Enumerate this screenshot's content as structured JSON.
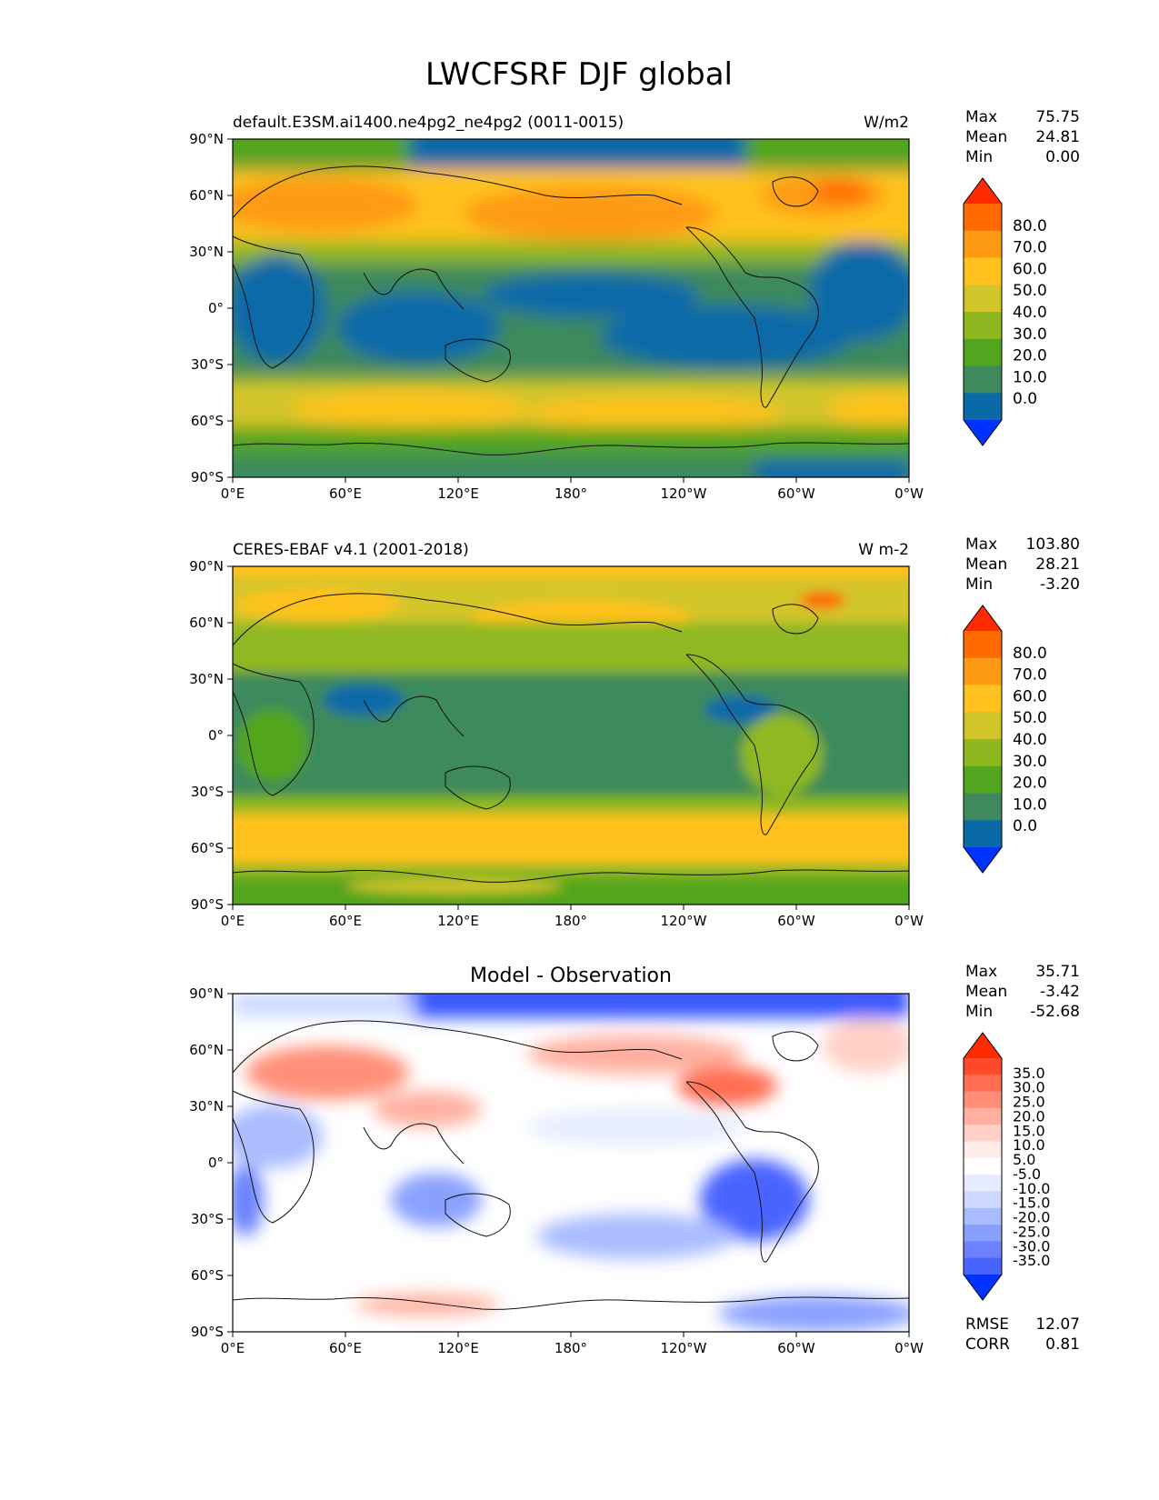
{
  "figure_title": "LWCFSRF DJF global",
  "x_tick_labels": [
    "0°E",
    "60°E",
    "120°E",
    "180°",
    "120°W",
    "60°W",
    "0°W"
  ],
  "y_tick_labels": [
    "90°N",
    "60°N",
    "30°N",
    "0°",
    "30°S",
    "60°S",
    "90°S"
  ],
  "panels": [
    {
      "id": "model",
      "left_title": "default.E3SM.ai1400.ne4pg2_ne4pg2 (0011-0015)",
      "center_title": "",
      "units": "W/m2",
      "stats": [
        {
          "label": "Max",
          "value": "75.75"
        },
        {
          "label": "Mean",
          "value": "24.81"
        },
        {
          "label": "Min",
          "value": "0.00"
        }
      ],
      "colorbar_labels": [
        "80.0",
        "70.0",
        "60.0",
        "50.0",
        "40.0",
        "30.0",
        "20.0",
        "10.0",
        "0.0"
      ],
      "colorbar_colors": [
        "#ff2a00",
        "#ff6a00",
        "#ff9a14",
        "#ffc21e",
        "#d2c52a",
        "#8fb820",
        "#52a51e",
        "#3e8a5c",
        "#0a6aa8",
        "#0033ff"
      ]
    },
    {
      "id": "obs",
      "left_title": "CERES-EBAF v4.1 (2001-2018)",
      "center_title": "",
      "units": "W m-2",
      "stats": [
        {
          "label": "Max",
          "value": "103.80"
        },
        {
          "label": "Mean",
          "value": "28.21"
        },
        {
          "label": "Min",
          "value": "-3.20"
        }
      ],
      "colorbar_labels": [
        "80.0",
        "70.0",
        "60.0",
        "50.0",
        "40.0",
        "30.0",
        "20.0",
        "10.0",
        "0.0"
      ],
      "colorbar_colors": [
        "#ff2a00",
        "#ff6a00",
        "#ff9a14",
        "#ffc21e",
        "#d2c52a",
        "#8fb820",
        "#52a51e",
        "#3e8a5c",
        "#0a6aa8",
        "#0033ff"
      ]
    },
    {
      "id": "diff",
      "left_title": "",
      "center_title": "Model - Observation",
      "units": "",
      "stats": [
        {
          "label": "Max",
          "value": "35.71"
        },
        {
          "label": "Mean",
          "value": "-3.42"
        },
        {
          "label": "Min",
          "value": "-52.68"
        }
      ],
      "extra_stats": [
        {
          "label": "RMSE",
          "value": "12.07"
        },
        {
          "label": "CORR",
          "value": "0.81"
        }
      ],
      "colorbar_labels": [
        "35.0",
        "30.0",
        "25.0",
        "20.0",
        "15.0",
        "10.0",
        "5.0",
        "-5.0",
        "-10.0",
        "-15.0",
        "-20.0",
        "-25.0",
        "-30.0",
        "-35.0"
      ],
      "colorbar_colors": [
        "#ff2a00",
        "#ff4a2a",
        "#ff6e52",
        "#ff8f78",
        "#ffb0a0",
        "#ffd0c6",
        "#ffecea",
        "#ffffff",
        "#e6ecff",
        "#ccd8ff",
        "#aabcff",
        "#8aa0ff",
        "#6a82ff",
        "#4864ff",
        "#0033ff"
      ]
    }
  ],
  "colors": {
    "model_ocean_tropics": "#0a6aa8",
    "model_mid": "#3e8a5c",
    "obs_tropics": "#3e8a5c",
    "midlat_storm": "#ffc21e",
    "diff_positive": "#ff8f78",
    "diff_negative": "#8aa0ff"
  }
}
